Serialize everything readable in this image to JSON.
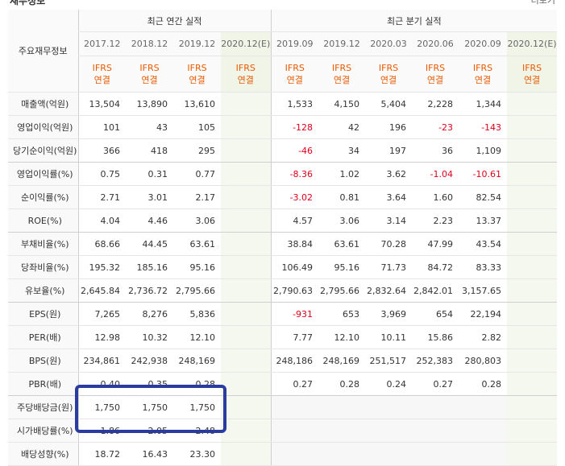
{
  "top": {
    "title_partial": "재무정보",
    "right_link": "더보기"
  },
  "header": {
    "row_label": "주요재무정보",
    "annual_group": "최근 연간 실적",
    "quarter_group": "최근 분기 실적",
    "annual_periods": [
      "2017.12",
      "2018.12",
      "2019.12",
      "2020.12(E)"
    ],
    "quarter_periods": [
      "2019.09",
      "2019.12",
      "2020.03",
      "2020.06",
      "2020.09",
      "2020.12(E)"
    ],
    "basis_line1": "IFRS",
    "basis_line2": "연결"
  },
  "rows": [
    {
      "label": "매출액(억원)",
      "annual": [
        "13,504",
        "13,890",
        "13,610",
        ""
      ],
      "quarter": [
        "1,533",
        "4,150",
        "5,404",
        "2,228",
        "1,344",
        ""
      ]
    },
    {
      "label": "영업이익(억원)",
      "annual": [
        "101",
        "43",
        "105",
        ""
      ],
      "quarter": [
        "-128",
        "42",
        "196",
        "-23",
        "-143",
        ""
      ]
    },
    {
      "label": "당기순이익(억원)",
      "annual": [
        "366",
        "418",
        "295",
        ""
      ],
      "quarter": [
        "-46",
        "34",
        "197",
        "36",
        "1,109",
        ""
      ]
    },
    {
      "label": "영업이익률(%)",
      "annual": [
        "0.75",
        "0.31",
        "0.77",
        ""
      ],
      "quarter": [
        "-8.36",
        "1.02",
        "3.62",
        "-1.04",
        "-10.61",
        ""
      ]
    },
    {
      "label": "순이익률(%)",
      "annual": [
        "2.71",
        "3.01",
        "2.17",
        ""
      ],
      "quarter": [
        "-3.02",
        "0.81",
        "3.64",
        "1.60",
        "82.54",
        ""
      ]
    },
    {
      "label": "ROE(%)",
      "annual": [
        "4.04",
        "4.46",
        "3.06",
        ""
      ],
      "quarter": [
        "4.57",
        "3.06",
        "3.14",
        "2.23",
        "13.37",
        ""
      ]
    },
    {
      "label": "부채비율(%)",
      "annual": [
        "68.66",
        "44.45",
        "63.61",
        ""
      ],
      "quarter": [
        "38.84",
        "63.61",
        "70.28",
        "47.99",
        "43.54",
        ""
      ]
    },
    {
      "label": "당좌비율(%)",
      "annual": [
        "195.32",
        "185.16",
        "95.16",
        ""
      ],
      "quarter": [
        "106.49",
        "95.16",
        "71.73",
        "84.72",
        "83.33",
        ""
      ]
    },
    {
      "label": "유보율(%)",
      "annual": [
        "2,645.84",
        "2,736.72",
        "2,795.66",
        ""
      ],
      "quarter": [
        "2,790.63",
        "2,795.66",
        "2,832.64",
        "2,842.01",
        "3,157.65",
        ""
      ]
    },
    {
      "label": "EPS(원)",
      "annual": [
        "7,265",
        "8,276",
        "5,836",
        ""
      ],
      "quarter": [
        "-931",
        "653",
        "3,969",
        "654",
        "22,194",
        ""
      ]
    },
    {
      "label": "PER(배)",
      "annual": [
        "12.98",
        "10.32",
        "12.10",
        ""
      ],
      "quarter": [
        "7.77",
        "12.10",
        "10.11",
        "15.86",
        "2.82",
        ""
      ]
    },
    {
      "label": "BPS(원)",
      "annual": [
        "234,861",
        "242,938",
        "248,169",
        ""
      ],
      "quarter": [
        "248,186",
        "248,169",
        "251,517",
        "252,383",
        "280,803",
        ""
      ]
    },
    {
      "label": "PBR(배)",
      "annual": [
        "0.40",
        "0.35",
        "0.28",
        ""
      ],
      "quarter": [
        "0.27",
        "0.28",
        "0.24",
        "0.27",
        "0.28",
        ""
      ]
    },
    {
      "label": "주당배당금(원)",
      "annual": [
        "1,750",
        "1,750",
        "1,750",
        ""
      ],
      "quarter": [
        "",
        "",
        "",
        "",
        "",
        ""
      ]
    },
    {
      "label": "시가배당률(%)",
      "annual": [
        "1.86",
        "2.05",
        "2.48",
        ""
      ],
      "quarter": [
        "",
        "",
        "",
        "",
        "",
        ""
      ]
    },
    {
      "label": "배당성향(%)",
      "annual": [
        "18.72",
        "16.43",
        "23.30",
        ""
      ],
      "quarter": [
        "",
        "",
        "",
        "",
        "",
        ""
      ]
    }
  ],
  "colors": {
    "negative": "#e0001a",
    "ifrs": "#e85a00",
    "highlight": "#2b3ca0",
    "estimate_bg": "#f4f8ee"
  }
}
